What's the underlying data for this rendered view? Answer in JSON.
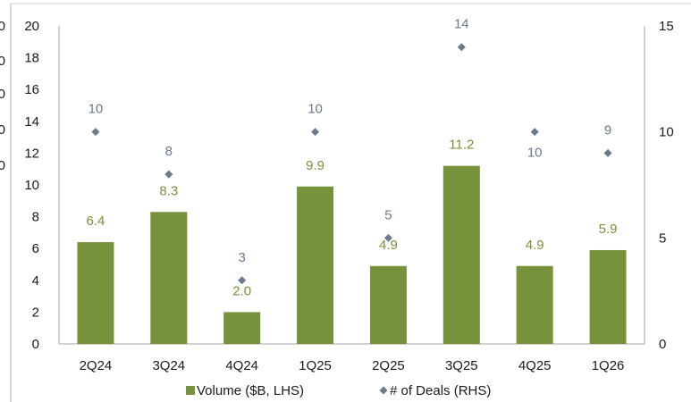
{
  "chart_data": {
    "type": "bar",
    "categories": [
      "2Q24",
      "3Q24",
      "4Q24",
      "1Q25",
      "2Q25",
      "3Q25",
      "4Q25",
      "1Q26"
    ],
    "series": [
      {
        "name": "Volume ($B, LHS)",
        "type": "bar",
        "axis": "left",
        "color": "#76933c",
        "values": [
          6.4,
          8.3,
          2.0,
          9.9,
          4.9,
          11.2,
          4.9,
          5.9
        ],
        "labels": [
          "6.4",
          "8.3",
          "2.0",
          "9.9",
          "4.9",
          "11.2",
          "4.9",
          "5.9"
        ]
      },
      {
        "name": "# of Deals (RHS)",
        "type": "scatter",
        "axis": "right",
        "color": "#6b7a8f",
        "values": [
          10,
          8,
          3,
          10,
          5,
          14,
          10,
          9
        ],
        "labels": [
          "10",
          "8",
          "3",
          "10",
          "5",
          "14",
          "10",
          "9"
        ]
      }
    ],
    "y_left": {
      "lim": [
        0,
        20
      ],
      "ticks": [
        "0",
        "2",
        "4",
        "6",
        "8",
        "10",
        "12",
        "14",
        "16",
        "18",
        "20"
      ]
    },
    "y_right": {
      "lim": [
        0,
        15
      ],
      "ticks": [
        "0",
        "5",
        "10",
        "15"
      ]
    },
    "left_edge_fragments": [
      "0",
      "0",
      "0",
      "0",
      "0"
    ],
    "grid": false,
    "legend": "bottom"
  }
}
